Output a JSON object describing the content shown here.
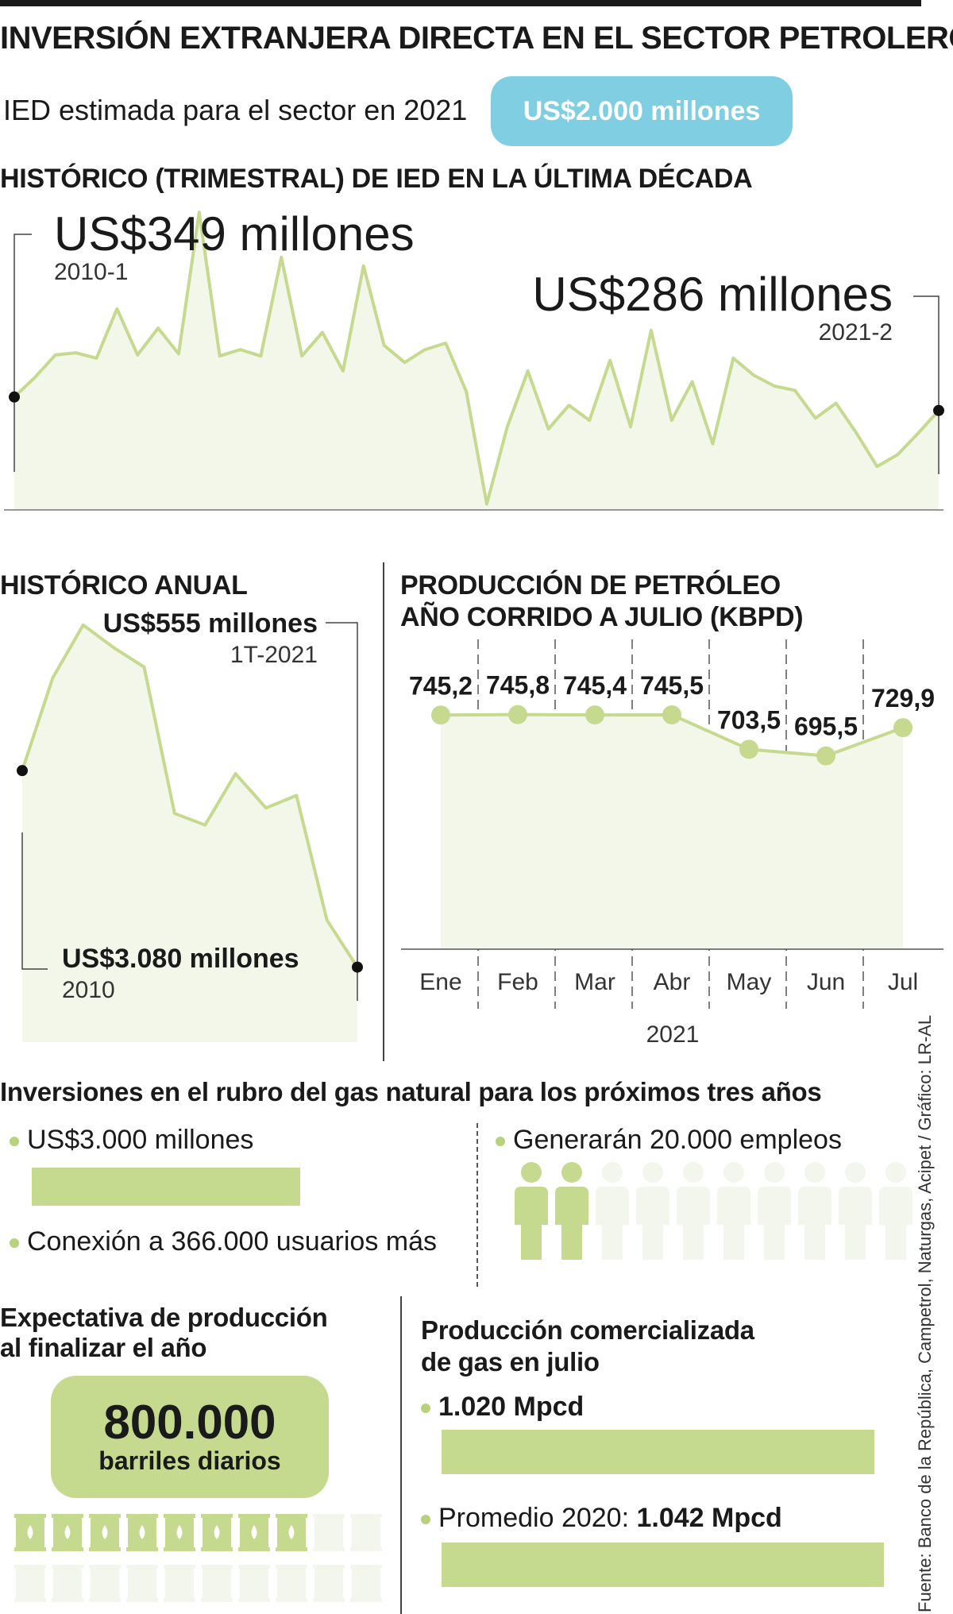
{
  "title": "INVERSIÓN EXTRANJERA DIRECTA EN EL SECTOR PETROLERO",
  "ied": {
    "label": "IED estimada para el sector en 2021",
    "value": "US$2.000 millones"
  },
  "quarterly": {
    "title": "HISTÓRICO (TRIMESTRAL) DE IED EN LA ÚLTIMA DÉCADA",
    "start_value": "US$349 millones",
    "start_period": "2010-1",
    "end_value": "US$286 millones",
    "end_period": "2021-2"
  },
  "annual": {
    "title": "HISTÓRICO ANUAL",
    "max_value": "US$555 millones",
    "max_period": "1T-2021",
    "start_value": "US$3.080 millones",
    "start_period": "2010"
  },
  "production": {
    "title_line1": "PRODUCCIÓN DE PETRÓLEO",
    "title_line2": "AÑO CORRIDO A JULIO (KBPD)",
    "year": "2021"
  },
  "gas_invest": {
    "title": "Inversiones en el rubro del gas natural para los próximos tres años",
    "amount": "US$3.000 millones",
    "connection": "Conexión a 366.000 usuarios más",
    "jobs": "Generarán 20.000 empleos",
    "jobs_highlighted": 2,
    "jobs_total": 10
  },
  "expectation": {
    "title_line1": "Expectativa de producción",
    "title_line2": "al finalizar el año",
    "value": "800.000",
    "unit": "barriles diarios",
    "barrels_highlighted": 8,
    "barrels_per_row": 10
  },
  "gas_prod": {
    "title_line1": "Producción comercializada",
    "title_line2": "de gas en julio",
    "july_value": "1.020 Mpcd",
    "avg_label": "Promedio 2020: ",
    "avg_value": "1.042 Mpcd"
  },
  "source": "Fuente: Banco de la República, Campetrol, Naturgas, Acipet  / Gráfico: LR-AL",
  "colors": {
    "line": "#c5d98f",
    "fill": "#f3f7ea",
    "pill_blue": "#7fcee2",
    "muted_icon": "#f3f6ec"
  },
  "chart_data": [
    {
      "type": "area",
      "title": "HISTÓRICO (TRIMESTRAL) DE IED EN LA ÚLTIMA DÉCADA",
      "x_range": [
        "2010-1",
        "2021-2"
      ],
      "values": [
        349,
        440,
        545,
        555,
        530,
        760,
        545,
        670,
        550,
        1210,
        540,
        570,
        540,
        1000,
        540,
        650,
        470,
        960,
        590,
        510,
        570,
        600,
        375,
        -150,
        210,
        470,
        200,
        310,
        240,
        520,
        210,
        660,
        240,
        420,
        130,
        530,
        450,
        400,
        380,
        250,
        320,
        180,
        25,
        80,
        180,
        286
      ],
      "annotations": [
        {
          "label": "US$349 millones",
          "period": "2010-1"
        },
        {
          "label": "US$286 millones",
          "period": "2021-2"
        }
      ]
    },
    {
      "type": "area",
      "title": "HISTÓRICO ANUAL",
      "x": [
        "2010",
        "2011",
        "2012",
        "2013",
        "2014",
        "2015",
        "2016",
        "2017",
        "2018",
        "2019",
        "2020",
        "1T-2021"
      ],
      "values": [
        3080,
        4270,
        4950,
        4660,
        4410,
        2530,
        2380,
        3040,
        2600,
        2760,
        1160,
        555
      ],
      "annotations": [
        {
          "label": "US$3.080 millones",
          "period": "2010"
        },
        {
          "label": "US$555 millones",
          "period": "1T-2021"
        }
      ]
    },
    {
      "type": "line",
      "title": "PRODUCCIÓN DE PETRÓLEO AÑO CORRIDO A JULIO (KBPD)",
      "categories": [
        "Ene",
        "Feb",
        "Mar",
        "Abr",
        "May",
        "Jun",
        "Jul"
      ],
      "values": [
        745.2,
        745.8,
        745.4,
        745.5,
        703.5,
        695.5,
        729.9
      ],
      "value_labels": [
        "745,2",
        "745,8",
        "745,4",
        "745,5",
        "703,5",
        "695,5",
        "729,9"
      ],
      "xlabel": "2021",
      "ylim": [
        460,
        760
      ]
    },
    {
      "type": "bar",
      "title": "Producción comercializada de gas en julio",
      "categories": [
        "Julio",
        "Promedio 2020"
      ],
      "values": [
        1020,
        1042
      ],
      "value_labels": [
        "1.020 Mpcd",
        "1.042 Mpcd"
      ]
    }
  ]
}
